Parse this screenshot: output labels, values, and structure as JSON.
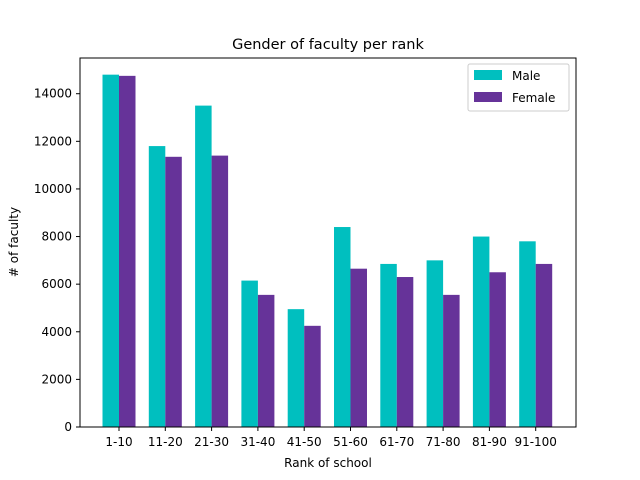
{
  "chart_data": {
    "type": "bar",
    "title": "Gender of faculty per rank",
    "xlabel": "Rank of school",
    "ylabel": "# of faculty",
    "categories": [
      "1-10",
      "11-20",
      "21-30",
      "31-40",
      "41-50",
      "51-60",
      "61-70",
      "71-80",
      "81-90",
      "91-100"
    ],
    "series": [
      {
        "name": "Male",
        "color": "#00bfbf",
        "values": [
          14800,
          11800,
          13500,
          6150,
          4950,
          8400,
          6850,
          7000,
          8000,
          7800
        ]
      },
      {
        "name": "Female",
        "color": "#663399",
        "values": [
          14750,
          11350,
          11400,
          5550,
          4250,
          6650,
          6300,
          5550,
          6500,
          6850
        ]
      }
    ],
    "ylim": [
      0,
      15500
    ],
    "yticks": [
      0,
      2000,
      4000,
      6000,
      8000,
      10000,
      12000,
      14000
    ],
    "legend_position": "top-right",
    "grid": false
  }
}
